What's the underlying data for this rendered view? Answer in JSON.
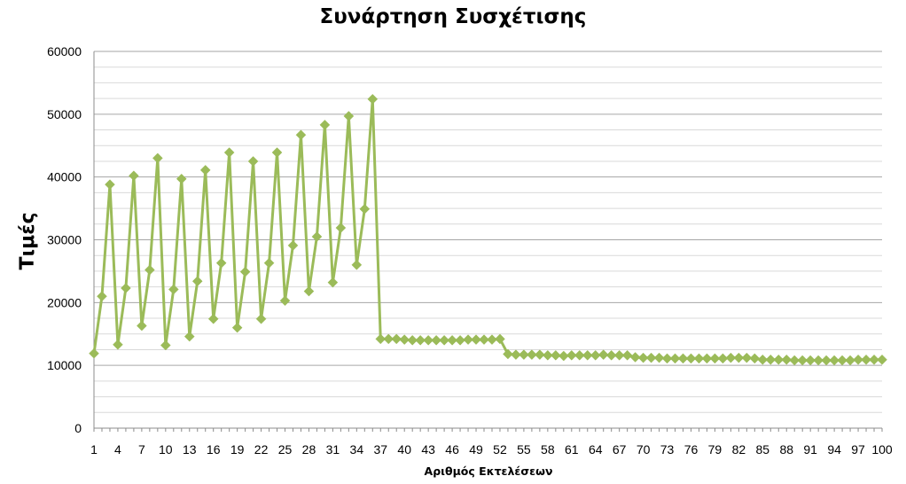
{
  "chart_data": {
    "type": "line",
    "title": "Συνάρτηση Συσχέτισης",
    "xlabel": "Αριθμός Εκτελέσεων",
    "ylabel": "Τιμές",
    "ylim": [
      0,
      60000
    ],
    "y_major_ticks": [
      0,
      10000,
      20000,
      30000,
      40000,
      50000,
      60000
    ],
    "y_minor_step": 2500,
    "x_tick_labels": [
      "1",
      "4",
      "7",
      "10",
      "13",
      "16",
      "19",
      "22",
      "25",
      "28",
      "31",
      "34",
      "37",
      "40",
      "43",
      "46",
      "49",
      "52",
      "55",
      "58",
      "61",
      "64",
      "67",
      "70",
      "73",
      "76",
      "79",
      "82",
      "85",
      "88",
      "91",
      "94",
      "97",
      "100"
    ],
    "grid": true,
    "legend": "none",
    "marker": "diamond",
    "series_color": "#9BBB59",
    "series": [
      {
        "values": [
          11900,
          21000,
          38800,
          13300,
          22300,
          40200,
          16300,
          25200,
          43000,
          13200,
          22100,
          39700,
          14600,
          23400,
          41100,
          17400,
          26300,
          43900,
          16000,
          24900,
          42500,
          17400,
          26300,
          43900,
          20300,
          29100,
          46700,
          21800,
          30500,
          48300,
          23200,
          31900,
          49700,
          26000,
          34900,
          52400,
          14200,
          14200,
          14200,
          14100,
          14000,
          14000,
          14000,
          14000,
          14000,
          14000,
          14000,
          14100,
          14100,
          14100,
          14100,
          14200,
          11800,
          11700,
          11700,
          11700,
          11700,
          11600,
          11600,
          11500,
          11600,
          11600,
          11600,
          11600,
          11700,
          11600,
          11600,
          11600,
          11300,
          11200,
          11200,
          11200,
          11100,
          11100,
          11100,
          11100,
          11100,
          11100,
          11100,
          11100,
          11200,
          11200,
          11200,
          11100,
          10900,
          10900,
          10900,
          10900,
          10800,
          10800,
          10800,
          10800,
          10800,
          10800,
          10800,
          10800,
          10900,
          10900,
          10900,
          10900
        ]
      }
    ]
  }
}
